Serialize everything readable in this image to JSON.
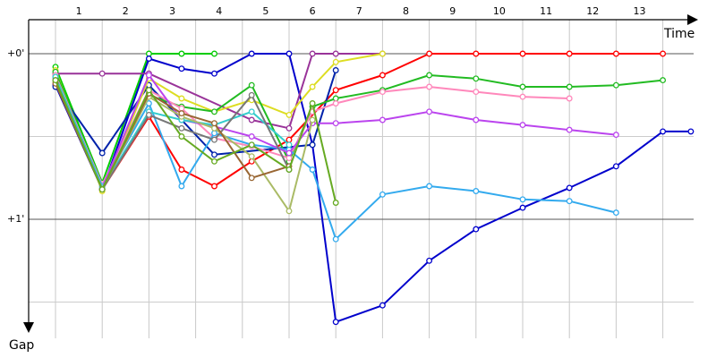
{
  "chart_data": {
    "type": "line",
    "x_axis": {
      "label": "Time",
      "ticks": [
        "1",
        "2",
        "3",
        "4",
        "5",
        "6",
        "7",
        "8",
        "9",
        "10",
        "11",
        "12",
        "13"
      ]
    },
    "y_axis": {
      "label": "Gap",
      "ticks": [
        "+0'",
        "+1'"
      ],
      "range_minutes": [
        0,
        1.6
      ],
      "direction": "down"
    },
    "grid": true,
    "series": [
      {
        "color": "#ff0000",
        "points": [
          [
            0,
            0.13
          ],
          [
            1,
            0.82
          ],
          [
            2,
            0.38
          ],
          [
            2.7,
            0.7
          ],
          [
            3.4,
            0.8
          ],
          [
            4.2,
            0.65
          ],
          [
            5,
            0.52
          ],
          [
            6,
            0.22
          ],
          [
            7,
            0.13
          ],
          [
            8,
            0
          ],
          [
            9,
            0
          ],
          [
            10,
            0
          ],
          [
            11,
            0
          ],
          [
            12,
            0
          ],
          [
            13,
            0
          ]
        ]
      },
      {
        "color": "#00cc00",
        "points": [
          [
            0,
            0.08
          ],
          [
            1,
            0.78
          ],
          [
            2,
            0
          ],
          [
            2.7,
            0
          ],
          [
            3.4,
            0
          ]
        ]
      },
      {
        "color": "#0000cc",
        "points": [
          [
            0,
            0.19
          ],
          [
            1,
            0.82
          ],
          [
            2,
            0.03
          ],
          [
            2.7,
            0.09
          ],
          [
            3.4,
            0.12
          ],
          [
            4.2,
            0
          ],
          [
            5,
            0
          ],
          [
            5.5,
            0.55
          ],
          [
            6,
            1.62
          ],
          [
            7,
            1.52
          ],
          [
            8,
            1.25
          ],
          [
            9,
            1.06
          ],
          [
            10,
            0.93
          ],
          [
            11,
            0.81
          ],
          [
            12,
            0.68
          ],
          [
            13,
            0.47
          ],
          [
            13.6,
            0.47
          ]
        ]
      },
      {
        "color": "#0022aa",
        "points": [
          [
            0,
            0.2
          ],
          [
            1,
            0.6
          ],
          [
            2,
            0.19
          ],
          [
            3.4,
            0.61
          ],
          [
            5.5,
            0.55
          ],
          [
            6,
            0.1
          ]
        ]
      },
      {
        "color": "#993399",
        "points": [
          [
            0,
            0.12
          ],
          [
            1,
            0.12
          ],
          [
            2,
            0.12
          ],
          [
            4.2,
            0.4
          ],
          [
            5,
            0.45
          ],
          [
            5.5,
            0
          ],
          [
            6,
            0
          ],
          [
            7,
            0
          ]
        ]
      },
      {
        "color": "#dddd22",
        "points": [
          [
            0,
            0.1
          ],
          [
            1,
            0.83
          ],
          [
            2,
            0.15
          ],
          [
            2.7,
            0.27
          ],
          [
            3.4,
            0.35
          ],
          [
            4.2,
            0.28
          ],
          [
            5,
            0.37
          ],
          [
            5.5,
            0.2
          ],
          [
            6,
            0.05
          ],
          [
            7,
            0
          ]
        ]
      },
      {
        "color": "#22bb22",
        "points": [
          [
            0,
            0.11
          ],
          [
            1,
            0.8
          ],
          [
            2,
            0.25
          ],
          [
            2.7,
            0.32
          ],
          [
            3.4,
            0.35
          ],
          [
            4.2,
            0.19
          ],
          [
            5,
            0.65
          ],
          [
            5.5,
            0.32
          ],
          [
            6,
            0.27
          ],
          [
            7,
            0.22
          ],
          [
            8,
            0.13
          ],
          [
            9,
            0.15
          ],
          [
            10,
            0.2
          ],
          [
            11,
            0.2
          ],
          [
            12,
            0.19
          ],
          [
            13,
            0.16
          ]
        ]
      },
      {
        "color": "#ff88bb",
        "points": [
          [
            0,
            0.13
          ],
          [
            1,
            0.79
          ],
          [
            2,
            0.22
          ],
          [
            2.7,
            0.33
          ],
          [
            3.4,
            0.51
          ],
          [
            4.2,
            0.56
          ],
          [
            5,
            0.63
          ],
          [
            5.5,
            0.35
          ],
          [
            6,
            0.3
          ],
          [
            7,
            0.23
          ],
          [
            8,
            0.2
          ],
          [
            9,
            0.23
          ],
          [
            10,
            0.26
          ],
          [
            11,
            0.27
          ]
        ]
      },
      {
        "color": "#33aaee",
        "points": [
          [
            0,
            0.14
          ],
          [
            1,
            0.8
          ],
          [
            2,
            0.3
          ],
          [
            2.7,
            0.8
          ],
          [
            3.4,
            0.48
          ],
          [
            4.2,
            0.55
          ],
          [
            5,
            0.58
          ],
          [
            5.5,
            0.7
          ],
          [
            6,
            1.12
          ],
          [
            7,
            0.85
          ],
          [
            8,
            0.8
          ],
          [
            9,
            0.83
          ],
          [
            10,
            0.88
          ],
          [
            11,
            0.89
          ],
          [
            12,
            0.96
          ]
        ]
      },
      {
        "color": "#bb44ee",
        "points": [
          [
            0,
            0.15
          ],
          [
            1,
            0.81
          ],
          [
            2,
            0.13
          ],
          [
            2.7,
            0.4
          ],
          [
            3.4,
            0.44
          ],
          [
            4.2,
            0.5
          ],
          [
            5,
            0.6
          ],
          [
            5.5,
            0.42
          ],
          [
            6,
            0.42
          ],
          [
            7,
            0.4
          ],
          [
            8,
            0.35
          ],
          [
            9,
            0.4
          ],
          [
            10,
            0.43
          ],
          [
            11,
            0.46
          ],
          [
            12,
            0.49
          ]
        ]
      },
      {
        "color": "#33cccc",
        "points": [
          [
            0,
            0.14
          ],
          [
            1,
            0.81
          ],
          [
            2,
            0.35
          ],
          [
            2.7,
            0.4
          ],
          [
            3.4,
            0.43
          ],
          [
            4.2,
            0.35
          ],
          [
            5,
            0.55
          ]
        ]
      },
      {
        "color": "#777777",
        "points": [
          [
            0,
            0.16
          ],
          [
            1,
            0.82
          ],
          [
            2,
            0.37
          ],
          [
            2.7,
            0.45
          ],
          [
            3.4,
            0.52
          ],
          [
            4.2,
            0.25
          ],
          [
            5,
            0.7
          ]
        ]
      },
      {
        "color": "#aabb66",
        "points": [
          [
            0,
            0.17
          ],
          [
            1,
            0.82
          ],
          [
            2,
            0.26
          ],
          [
            2.7,
            0.38
          ],
          [
            3.4,
            0.45
          ],
          [
            4.2,
            0.62
          ],
          [
            5,
            0.95
          ],
          [
            5.5,
            0.4
          ]
        ]
      },
      {
        "color": "#996633",
        "points": [
          [
            0,
            0.18
          ],
          [
            1,
            0.82
          ],
          [
            2,
            0.24
          ],
          [
            2.7,
            0.36
          ],
          [
            3.4,
            0.42
          ],
          [
            4.2,
            0.75
          ],
          [
            5,
            0.68
          ]
        ]
      },
      {
        "color": "#66aa22",
        "points": [
          [
            0,
            0.16
          ],
          [
            1,
            0.82
          ],
          [
            2,
            0.22
          ],
          [
            2.7,
            0.5
          ],
          [
            3.4,
            0.65
          ],
          [
            4.2,
            0.55
          ],
          [
            5,
            0.7
          ],
          [
            5.5,
            0.3
          ],
          [
            6,
            0.9
          ]
        ]
      }
    ]
  }
}
